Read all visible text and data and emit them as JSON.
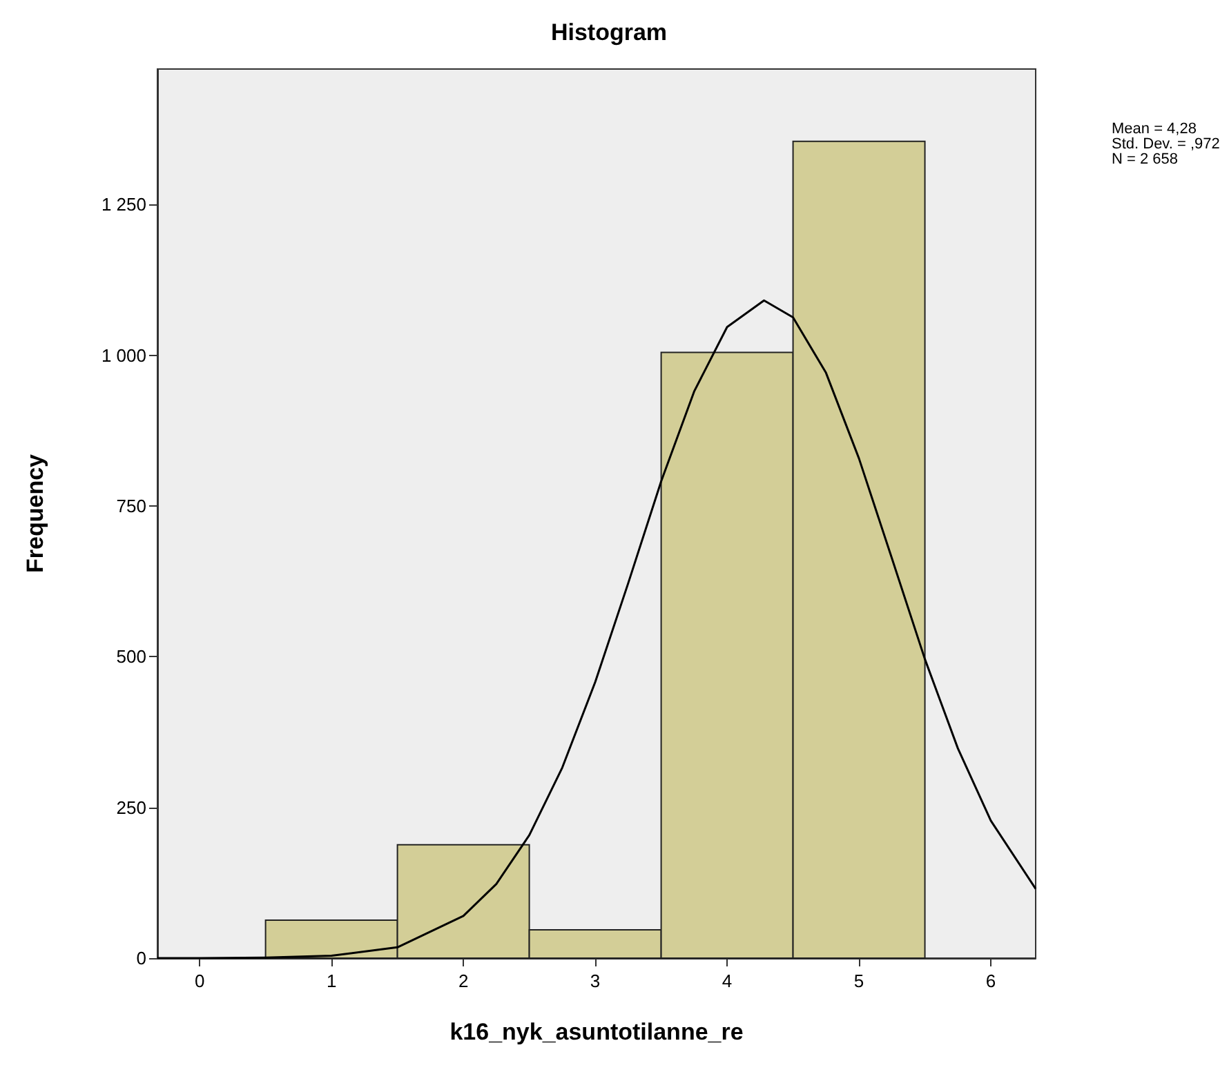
{
  "chart_data": {
    "type": "histogram",
    "title": "Histogram",
    "xlabel": "k16_nyk_asuntotilanne_re",
    "ylabel": "Frequency",
    "xlim": [
      -0.32,
      6.34
    ],
    "xticks": [
      0,
      1,
      2,
      3,
      4,
      5,
      6
    ],
    "ylim": [
      0,
      1475
    ],
    "yticks": [
      0,
      250,
      500,
      750,
      {
        "value": 1000,
        "label": "1 000"
      },
      {
        "value": 1250,
        "label": "1 250"
      }
    ],
    "grid": false,
    "series": [
      {
        "color": "#d3ce97",
        "bins": [
          0.5,
          1.5,
          2.5,
          3.5,
          4.5,
          5.5
        ],
        "values": [
          63,
          188,
          47,
          1005,
          1355
        ]
      },
      {
        "type": "line",
        "color": "#000000",
        "marker": "none",
        "x": [
          -0.32,
          0,
          0.5,
          1,
          1.5,
          2,
          2.25,
          2.5,
          2.75,
          3,
          3.25,
          3.5,
          3.75,
          4,
          4.28,
          4.5,
          4.75,
          5,
          5.25,
          5.5,
          5.75,
          6,
          6.34
        ],
        "values": [
          0,
          0,
          1,
          4,
          18,
          70,
          123,
          204,
          316,
          458,
          622,
          791,
          940,
          1047,
          1091,
          1063,
          971,
          829,
          663,
          496,
          348,
          228,
          115
        ]
      }
    ],
    "annotations": [
      "Mean = 4,28",
      "Std. Dev. = ,972",
      "N = 2 658"
    ]
  }
}
